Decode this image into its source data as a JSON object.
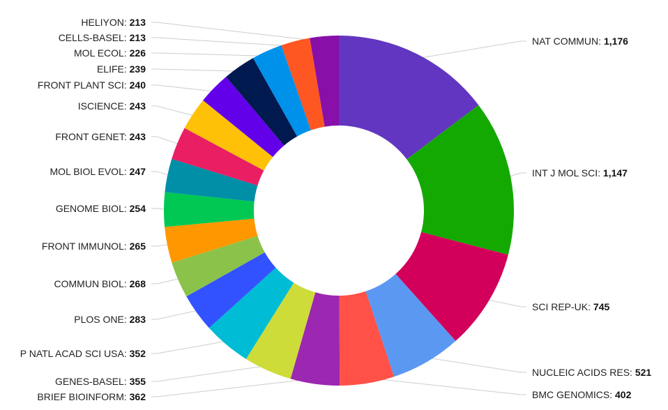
{
  "chart_data": {
    "type": "pie",
    "subtype": "donut",
    "title": "",
    "categories": [
      "NAT COMMUN",
      "INT J MOL SCI",
      "SCI REP-UK",
      "NUCLEIC ACIDS RES",
      "BMC GENOMICS",
      "BRIEF BIOINFORM",
      "GENES-BASEL",
      "P NATL ACAD SCI USA",
      "PLOS ONE",
      "COMMUN BIOL",
      "FRONT IMMUNOL",
      "GENOME BIOL",
      "MOL BIOL EVOL",
      "FRONT GENET",
      "ISCIENCE",
      "FRONT PLANT SCI",
      "ELIFE",
      "MOL ECOL",
      "CELLS-BASEL",
      "HELIYON"
    ],
    "values": [
      1176,
      1147,
      745,
      521,
      402,
      362,
      355,
      352,
      283,
      268,
      265,
      254,
      247,
      243,
      243,
      240,
      239,
      226,
      213,
      213
    ],
    "value_labels": [
      "1,176",
      "1,147",
      "745",
      "521",
      "402",
      "362",
      "355",
      "352",
      "283",
      "268",
      "265",
      "254",
      "247",
      "243",
      "243",
      "240",
      "239",
      "226",
      "213",
      "213"
    ],
    "colors": [
      "#6236c0",
      "#14a900",
      "#d2005a",
      "#5b98f2",
      "#ff5147",
      "#9c27b0",
      "#cddc39",
      "#00bcd4",
      "#3352ff",
      "#8bc34a",
      "#ff9800",
      "#00c853",
      "#008fa6",
      "#e91e63",
      "#ffc107",
      "#6200ea",
      "#001a4f",
      "#0091ea",
      "#ff5722",
      "#880fa8"
    ]
  }
}
